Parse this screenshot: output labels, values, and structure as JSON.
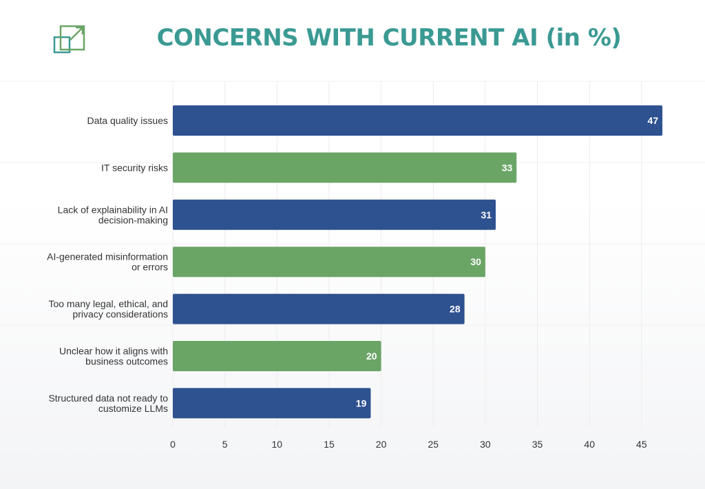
{
  "header": {
    "title": "CONCERNS WITH CURRENT AI (in %)",
    "logo_icon": "resize-arrow-icon"
  },
  "colors": {
    "title": "#3a9a93",
    "blue": "#2e5190",
    "green": "#6ba566",
    "logo": "#3a9a93"
  },
  "chart_data": {
    "type": "bar",
    "orientation": "horizontal",
    "title": "CONCERNS WITH CURRENT AI (in %)",
    "categories": [
      [
        "Data quality issues"
      ],
      [
        "IT security risks"
      ],
      [
        "Lack of explainability in AI",
        "decision-making"
      ],
      [
        "AI-generated misinformation",
        "or errors"
      ],
      [
        "Too many legal, ethical, and",
        "privacy considerations"
      ],
      [
        "Unclear how it aligns with",
        "business outcomes"
      ],
      [
        "Structured data not ready to",
        "customize LLMs"
      ]
    ],
    "values": [
      47,
      33,
      31,
      30,
      28,
      20,
      19
    ],
    "bar_colors": [
      "#2e5190",
      "#6ba566",
      "#2e5190",
      "#6ba566",
      "#2e5190",
      "#6ba566",
      "#2e5190"
    ],
    "xlim": [
      0,
      47
    ],
    "x_ticks": [
      0,
      5,
      10,
      15,
      20,
      25,
      30,
      35,
      40,
      45
    ],
    "grid": true,
    "xlabel": "",
    "ylabel": ""
  }
}
